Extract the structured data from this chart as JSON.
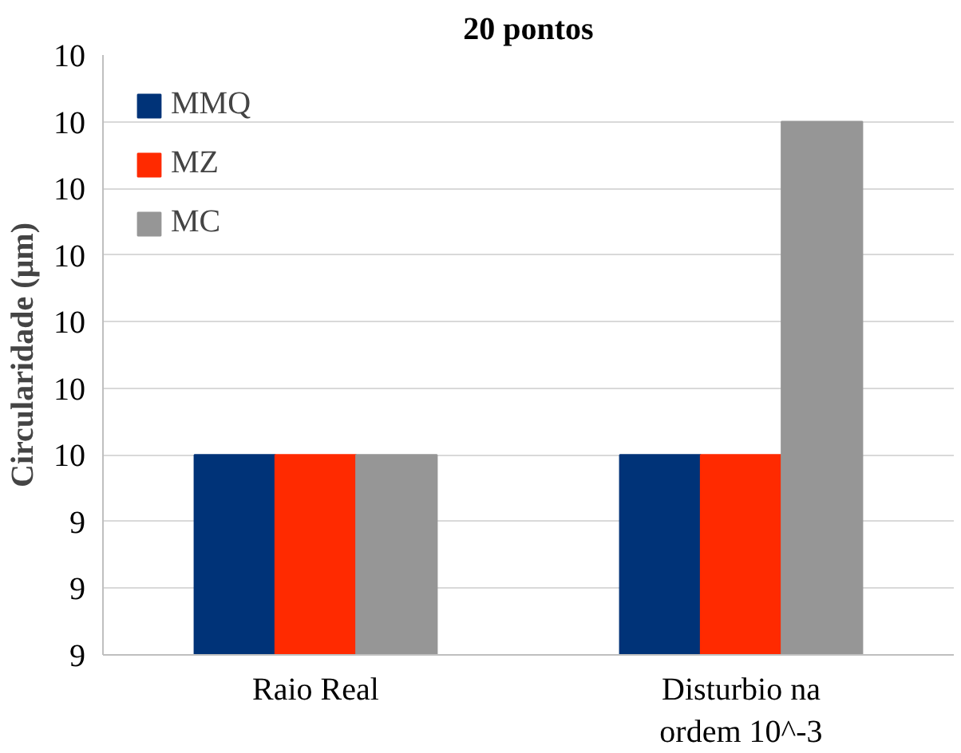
{
  "chart_data": {
    "type": "bar",
    "title": "20 pontos",
    "ylabel": "Circularidade (μm)",
    "categories": [
      "Raio Real",
      "Disturbio na ordem 10^-3"
    ],
    "series": [
      {
        "name": "MMQ",
        "color": "#003378",
        "values": [
          9.6,
          9.6
        ]
      },
      {
        "name": "MZ",
        "color": "#ff2a00",
        "values": [
          9.6,
          9.6
        ]
      },
      {
        "name": "MC",
        "color": "#969696",
        "values": [
          9.6,
          10.1
        ]
      }
    ],
    "ylim": [
      9.3,
      10.2
    ],
    "yticks": [
      {
        "value": 9.3,
        "label": "9"
      },
      {
        "value": 9.4,
        "label": "9"
      },
      {
        "value": 9.5,
        "label": "9"
      },
      {
        "value": 9.6,
        "label": "10"
      },
      {
        "value": 9.7,
        "label": "10"
      },
      {
        "value": 9.8,
        "label": "10"
      },
      {
        "value": 9.9,
        "label": "10"
      },
      {
        "value": 10.0,
        "label": "10"
      },
      {
        "value": 10.1,
        "label": "10"
      },
      {
        "value": 10.2,
        "label": "10"
      }
    ],
    "grid": "y",
    "legend": "top left"
  }
}
